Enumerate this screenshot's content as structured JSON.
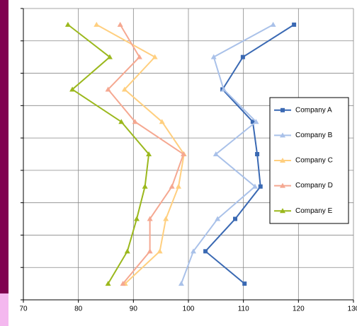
{
  "chart_data": {
    "type": "line",
    "orientation": "horizontal",
    "categories": [
      null,
      null,
      null,
      null,
      null,
      null,
      null,
      null,
      null
    ],
    "series": [
      {
        "name": "Company A",
        "color": "#3a69b3",
        "marker": "square",
        "values": [
          119.2,
          109.9,
          106.2,
          111.7,
          112.5,
          113.1,
          108.5,
          103.1,
          110.2
        ]
      },
      {
        "name": "Company B",
        "color": "#a9c1e9",
        "marker": "triangle",
        "values": [
          115.4,
          104.6,
          106.4,
          112.3,
          105.0,
          112.1,
          105.3,
          100.9,
          98.7
        ]
      },
      {
        "name": "Company C",
        "color": "#ffcf7f",
        "marker": "triangle",
        "values": [
          83.3,
          93.9,
          88.4,
          95.2,
          99.2,
          98.2,
          95.9,
          94.8,
          88.5
        ]
      },
      {
        "name": "Company D",
        "color": "#f5a891",
        "marker": "triangle",
        "values": [
          87.6,
          91.1,
          85.4,
          90.3,
          99.1,
          97.0,
          93.0,
          93.0,
          88.1
        ]
      },
      {
        "name": "Company E",
        "color": "#9bb81d",
        "marker": "triangle",
        "values": [
          78.1,
          85.7,
          78.9,
          87.8,
          92.8,
          92.1,
          90.6,
          88.9,
          85.4
        ]
      }
    ],
    "xlim": [
      70,
      130
    ],
    "xticks": [
      70,
      80,
      90,
      100,
      110,
      120,
      130
    ],
    "grid": true,
    "legend": "right"
  }
}
